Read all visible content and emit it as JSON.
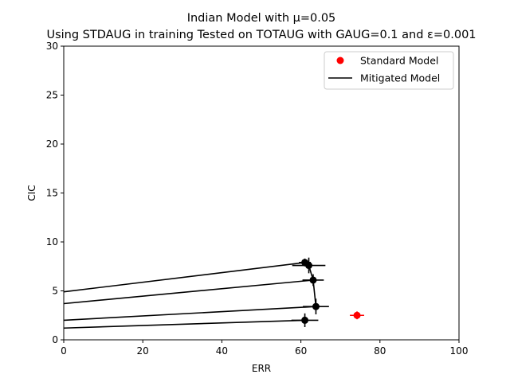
{
  "chart_data": {
    "type": "scatter",
    "title_line1": "Indian Model with μ=0.05",
    "title_line2": "Using STDAUG in training Tested on TOTAUG with GAUG=0.1 and ε=0.001",
    "xlabel": "ERR",
    "ylabel": "CIC",
    "xlim": [
      0,
      100
    ],
    "ylim": [
      0,
      30
    ],
    "xticks": [
      0,
      20,
      40,
      60,
      80,
      100
    ],
    "yticks": [
      0,
      5,
      10,
      15,
      20,
      25,
      30
    ],
    "grid": false,
    "legend": {
      "placement": "top-right",
      "entries": [
        {
          "label": "Standard Model",
          "marker": "dot",
          "color": "#ff0000"
        },
        {
          "label": "Mitigated Model",
          "marker": "line",
          "color": "#000000"
        }
      ]
    },
    "standard_model": {
      "color": "#ff0000",
      "points": [
        {
          "x": 74.2,
          "y": 2.5,
          "xerr": 1.8,
          "yerr": 0.4
        }
      ]
    },
    "mitigated_model": {
      "color": "#000000",
      "points": [
        {
          "x": 61.0,
          "y": 2.0,
          "xerr": 3.4,
          "yerr": 0.7
        },
        {
          "x": 63.8,
          "y": 3.4,
          "xerr": 3.3,
          "yerr": 0.8
        },
        {
          "x": 63.1,
          "y": 6.1,
          "xerr": 2.7,
          "yerr": 0.6
        },
        {
          "x": 62.0,
          "y": 7.6,
          "xerr": 4.2,
          "yerr": 0.8
        },
        {
          "x": 61.0,
          "y": 7.9,
          "xerr": 1.5,
          "yerr": 0.4
        }
      ],
      "connector_path": [
        {
          "x": 63.8,
          "y": 3.4
        },
        {
          "x": 63.1,
          "y": 6.1
        },
        {
          "x": 62.0,
          "y": 7.6
        }
      ],
      "trend_lines": [
        {
          "from": {
            "x": 0,
            "y": 1.2
          },
          "to": {
            "x": 61.0,
            "y": 2.0
          }
        },
        {
          "from": {
            "x": 0,
            "y": 2.0
          },
          "to": {
            "x": 63.8,
            "y": 3.4
          }
        },
        {
          "from": {
            "x": 0,
            "y": 3.7
          },
          "to": {
            "x": 63.1,
            "y": 6.1
          }
        },
        {
          "from": {
            "x": 0,
            "y": 4.9
          },
          "to": {
            "x": 61.0,
            "y": 7.9
          }
        }
      ]
    }
  }
}
